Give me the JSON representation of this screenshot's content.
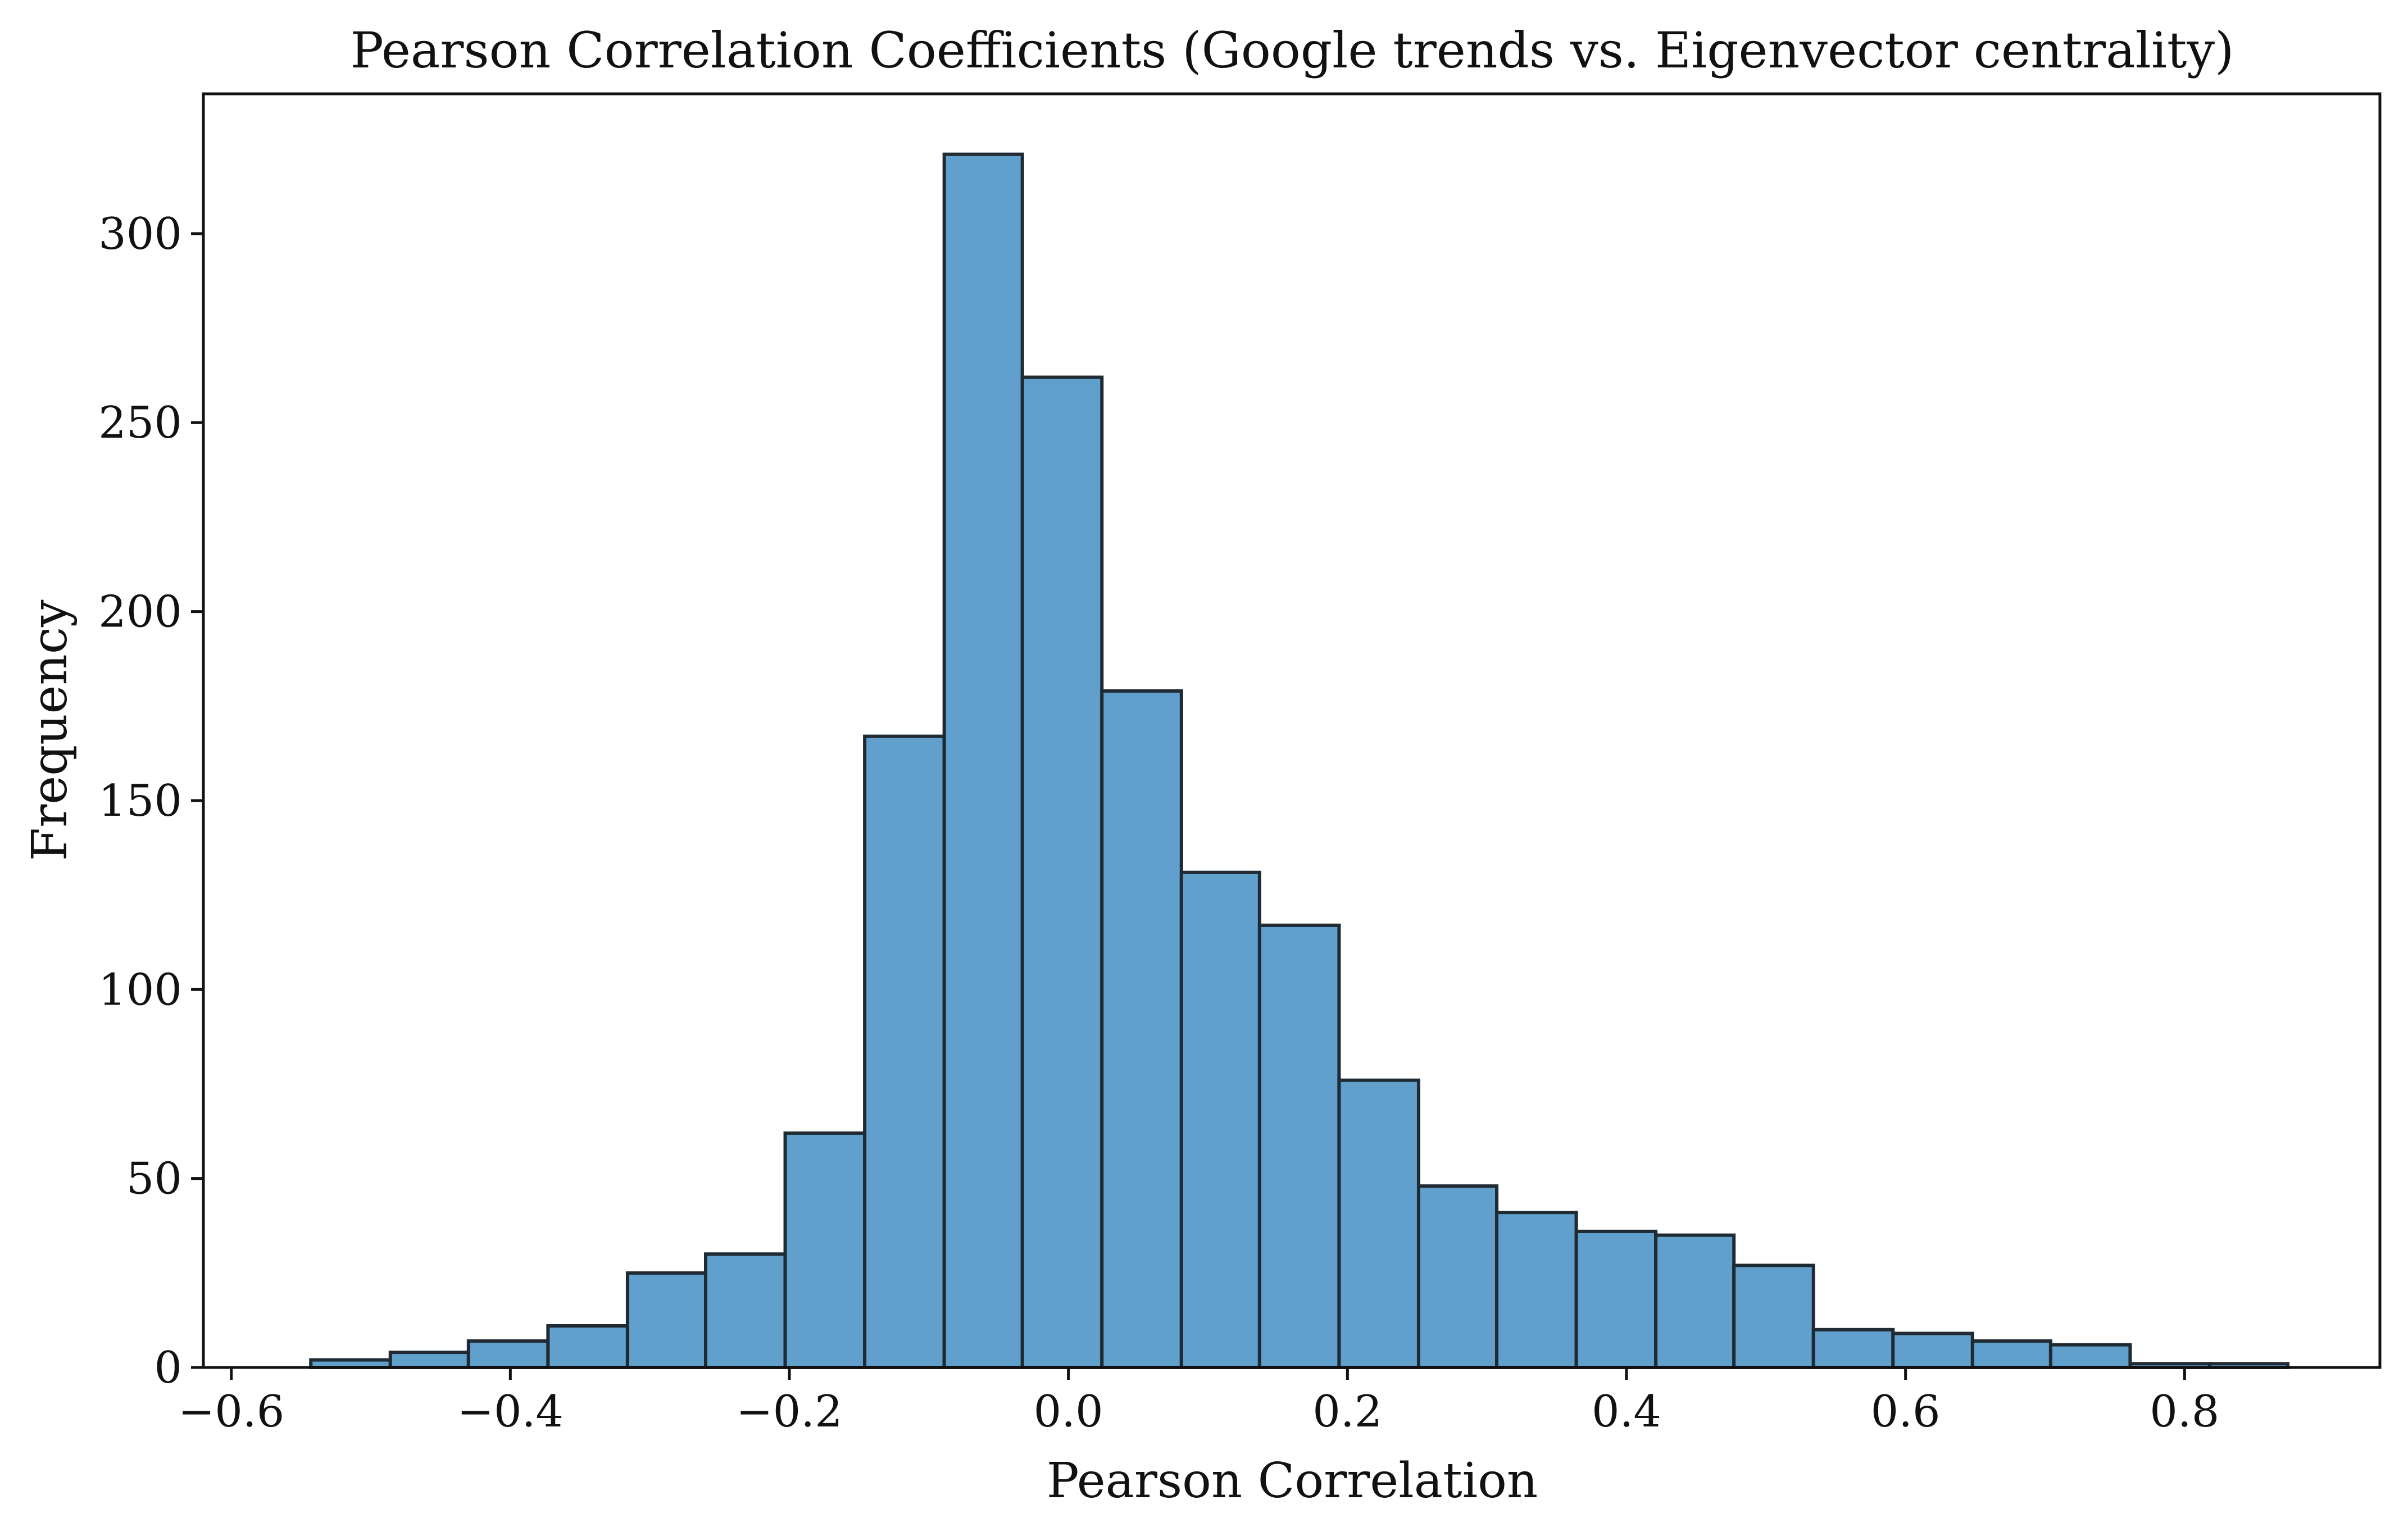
{
  "chart_data": {
    "type": "bar",
    "title": "Pearson Correlation Coefficients (Google trends vs. Eigenvector centrality)",
    "xlabel": "Pearson Correlation",
    "ylabel": "Frequency",
    "xlim": [
      -0.62,
      0.94
    ],
    "ylim": [
      0,
      337
    ],
    "grid": false,
    "bins": [
      {
        "start": -0.543,
        "end": -0.486,
        "count": 2
      },
      {
        "start": -0.486,
        "end": -0.43,
        "count": 4
      },
      {
        "start": -0.43,
        "end": -0.373,
        "count": 7
      },
      {
        "start": -0.373,
        "end": -0.316,
        "count": 11
      },
      {
        "start": -0.316,
        "end": -0.26,
        "count": 25
      },
      {
        "start": -0.26,
        "end": -0.203,
        "count": 30
      },
      {
        "start": -0.203,
        "end": -0.146,
        "count": 62
      },
      {
        "start": -0.146,
        "end": -0.089,
        "count": 167
      },
      {
        "start": -0.089,
        "end": -0.033,
        "count": 321
      },
      {
        "start": -0.033,
        "end": 0.024,
        "count": 262
      },
      {
        "start": 0.024,
        "end": 0.081,
        "count": 179
      },
      {
        "start": 0.081,
        "end": 0.137,
        "count": 131
      },
      {
        "start": 0.137,
        "end": 0.194,
        "count": 117
      },
      {
        "start": 0.194,
        "end": 0.251,
        "count": 76
      },
      {
        "start": 0.251,
        "end": 0.307,
        "count": 48
      },
      {
        "start": 0.307,
        "end": 0.364,
        "count": 41
      },
      {
        "start": 0.364,
        "end": 0.421,
        "count": 36
      },
      {
        "start": 0.421,
        "end": 0.477,
        "count": 35
      },
      {
        "start": 0.477,
        "end": 0.534,
        "count": 27
      },
      {
        "start": 0.534,
        "end": 0.591,
        "count": 10
      },
      {
        "start": 0.591,
        "end": 0.648,
        "count": 9
      },
      {
        "start": 0.648,
        "end": 0.704,
        "count": 7
      },
      {
        "start": 0.704,
        "end": 0.761,
        "count": 6
      },
      {
        "start": 0.761,
        "end": 0.818,
        "count": 1
      },
      {
        "start": 0.818,
        "end": 0.874,
        "count": 1
      }
    ],
    "xticks": [
      {
        "value": -0.6,
        "label": "−0.6"
      },
      {
        "value": -0.4,
        "label": "−0.4"
      },
      {
        "value": -0.2,
        "label": "−0.2"
      },
      {
        "value": 0.0,
        "label": "0.0"
      },
      {
        "value": 0.2,
        "label": "0.2"
      },
      {
        "value": 0.4,
        "label": "0.4"
      },
      {
        "value": 0.6,
        "label": "0.6"
      },
      {
        "value": 0.8,
        "label": "0.8"
      }
    ],
    "yticks": [
      {
        "value": 0,
        "label": "0"
      },
      {
        "value": 50,
        "label": "50"
      },
      {
        "value": 100,
        "label": "100"
      },
      {
        "value": 150,
        "label": "150"
      },
      {
        "value": 200,
        "label": "200"
      },
      {
        "value": 250,
        "label": "250"
      },
      {
        "value": 300,
        "label": "300"
      }
    ],
    "colors": {
      "bar_fill": "#619fcc",
      "bar_edge": "#1f2a33"
    }
  }
}
